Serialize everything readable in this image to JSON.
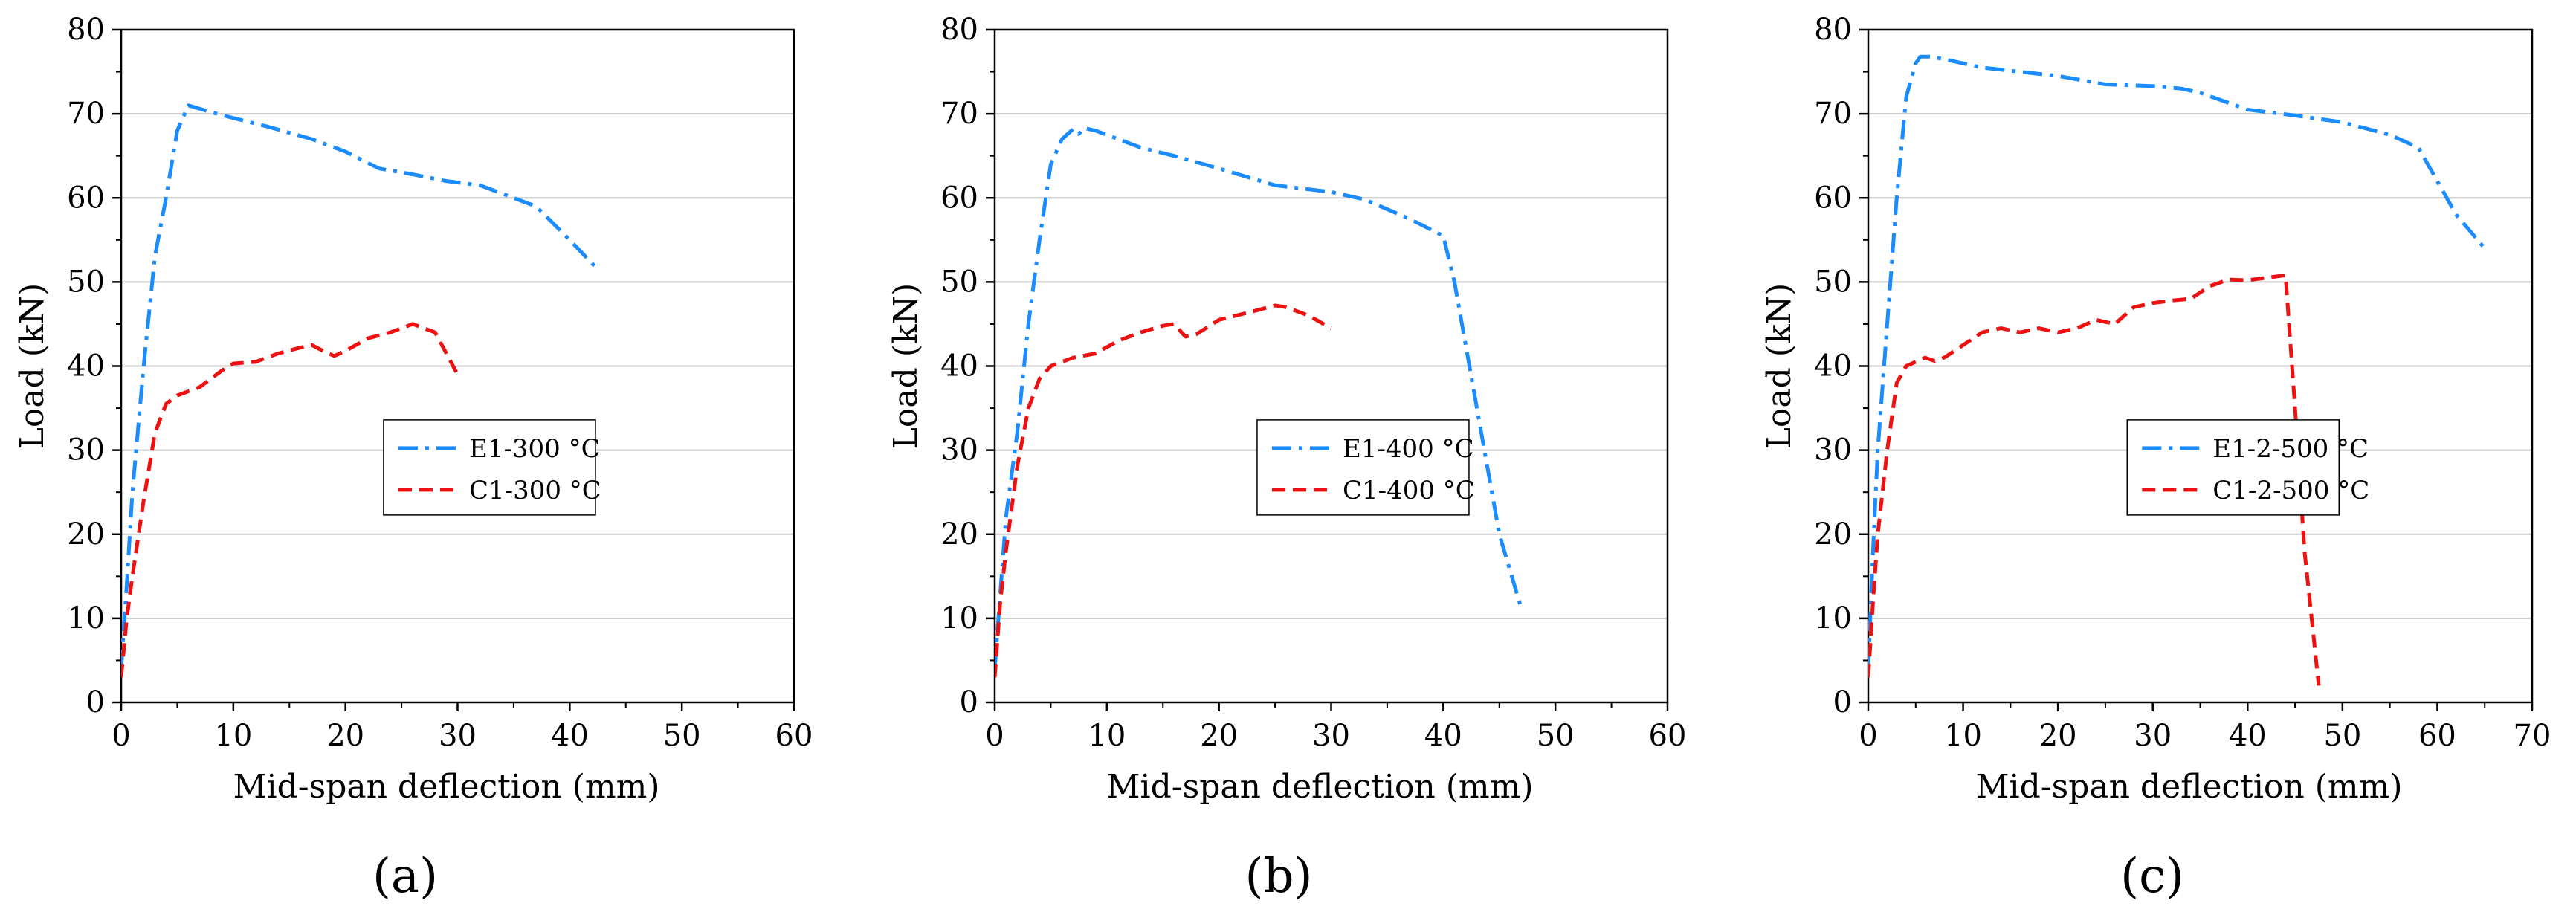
{
  "colors": {
    "E_series": "#1a8cff",
    "C_series": "#ee1111",
    "grid": "#c8c8c8",
    "axis": "#000000"
  },
  "chart_data": [
    {
      "type": "line",
      "panel_label": "(a)",
      "xlabel": "Mid-span deflection (mm)",
      "ylabel": "Load (kN)",
      "xlim": [
        0,
        60
      ],
      "ylim": [
        0,
        80
      ],
      "xticks": [
        0,
        10,
        20,
        30,
        40,
        50,
        60
      ],
      "yticks": [
        0,
        10,
        20,
        30,
        40,
        50,
        60,
        70,
        80
      ],
      "grid": "horizontal",
      "legend_position": "center-right",
      "series": [
        {
          "name": "E1-300 °C",
          "style": "dash-dot",
          "color": "#1a8cff",
          "x": [
            0,
            0.5,
            1,
            2,
            3,
            4,
            5,
            6,
            8,
            10,
            13,
            17,
            20,
            23,
            26,
            29,
            32,
            35,
            37,
            40,
            42.5
          ],
          "y": [
            4,
            14,
            25,
            40,
            53,
            60,
            68,
            71,
            70.2,
            69.5,
            68.5,
            67,
            65.5,
            63.5,
            62.8,
            62,
            61.5,
            60,
            59,
            55,
            51.5
          ]
        },
        {
          "name": "C1-300 °C",
          "style": "dashed",
          "color": "#ee1111",
          "x": [
            0,
            0.5,
            1,
            2,
            3,
            4,
            5,
            7,
            9,
            10,
            12,
            14,
            16,
            17,
            18,
            19,
            20,
            22,
            24,
            26,
            27,
            28,
            30
          ],
          "y": [
            3,
            10,
            15,
            24,
            32,
            35.5,
            36.5,
            37.5,
            39.5,
            40.3,
            40.5,
            41.5,
            42.2,
            42.5,
            41.8,
            41.2,
            41.8,
            43.3,
            44,
            45,
            44.5,
            44,
            39
          ]
        }
      ]
    },
    {
      "type": "line",
      "panel_label": "(b)",
      "xlabel": "Mid-span deflection (mm)",
      "ylabel": "Load (kN)",
      "xlim": [
        0,
        60
      ],
      "ylim": [
        0,
        80
      ],
      "xticks": [
        0,
        10,
        20,
        30,
        40,
        50,
        60
      ],
      "yticks": [
        0,
        10,
        20,
        30,
        40,
        50,
        60,
        70,
        80
      ],
      "grid": "horizontal",
      "legend_position": "center-right",
      "series": [
        {
          "name": "E1-400 °C",
          "style": "dash-dot",
          "color": "#1a8cff",
          "x": [
            0,
            0.5,
            1,
            2,
            3,
            4,
            5,
            6,
            7,
            7.5,
            8,
            9,
            10,
            13,
            16,
            20,
            25,
            30,
            33,
            37,
            40,
            41,
            43,
            45,
            47
          ],
          "y": [
            4,
            13,
            22,
            32,
            45,
            55,
            64,
            67,
            68.2,
            67.6,
            68.3,
            68,
            67.5,
            66,
            65,
            63.5,
            61.5,
            60.7,
            59.8,
            57.5,
            55.5,
            50,
            35,
            20,
            11
          ]
        },
        {
          "name": "C1-400 °C",
          "style": "dashed",
          "color": "#ee1111",
          "x": [
            0,
            0.5,
            1,
            2,
            3,
            4,
            5,
            6,
            7,
            9,
            11,
            13,
            15,
            16,
            17,
            18,
            20,
            23,
            25,
            26,
            28,
            30
          ],
          "y": [
            3,
            12,
            18,
            28,
            35,
            38.5,
            40,
            40.5,
            41,
            41.5,
            43,
            44,
            44.8,
            45,
            43.5,
            43.8,
            45.5,
            46.5,
            47.2,
            47,
            46,
            44.5
          ]
        }
      ]
    },
    {
      "type": "line",
      "panel_label": "(c)",
      "xlabel": "Mid-span deflection (mm)",
      "ylabel": "Load (kN)",
      "xlim": [
        0,
        70
      ],
      "ylim": [
        0,
        80
      ],
      "xticks": [
        0,
        10,
        20,
        30,
        40,
        50,
        60,
        70
      ],
      "yticks": [
        0,
        10,
        20,
        30,
        40,
        50,
        60,
        70,
        80
      ],
      "grid": "horizontal",
      "legend_position": "center-right",
      "series": [
        {
          "name": "E1-2-500 °C",
          "style": "dash-dot",
          "color": "#1a8cff",
          "x": [
            0,
            0.5,
            1,
            2,
            3,
            4,
            5,
            5.5,
            6.5,
            8,
            12,
            16,
            20,
            25,
            30,
            33,
            35,
            40,
            45,
            50,
            55,
            58,
            62,
            65
          ],
          "y": [
            4,
            18,
            30,
            45,
            60,
            72,
            76,
            76.8,
            76.8,
            76.5,
            75.5,
            75,
            74.5,
            73.5,
            73.3,
            73,
            72.5,
            70.5,
            69.8,
            69,
            67.5,
            66,
            58,
            54
          ]
        },
        {
          "name": "C1-2-500 °C",
          "style": "dashed",
          "color": "#ee1111",
          "x": [
            0,
            0.5,
            1,
            2,
            3,
            4,
            5,
            6,
            7,
            8,
            10,
            12,
            14,
            16,
            18,
            20,
            22,
            24,
            26,
            28,
            30,
            32,
            34,
            36,
            38,
            40,
            42,
            44,
            45,
            46,
            47.5
          ],
          "y": [
            3,
            12,
            20,
            30,
            38,
            40,
            40.5,
            41,
            40.6,
            41,
            42.5,
            44,
            44.5,
            44,
            44.5,
            44,
            44.5,
            45.5,
            45,
            47,
            47.5,
            47.8,
            48,
            49.5,
            50.3,
            50.2,
            50.5,
            50.8,
            35,
            18,
            2
          ]
        }
      ]
    }
  ]
}
